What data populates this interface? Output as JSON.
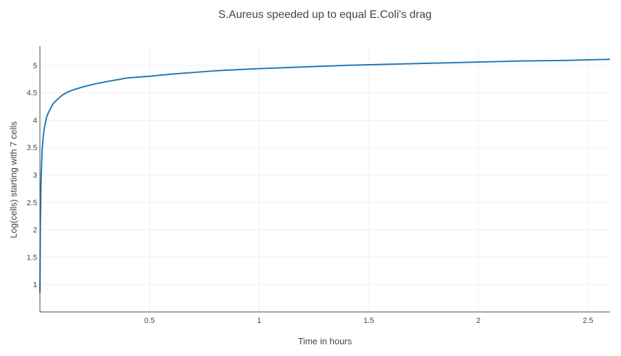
{
  "chart_data": {
    "type": "line",
    "title": "S.Aureus speeded up to equal E.Coli's drag",
    "xlabel": "Time in hours",
    "ylabel": "Log(cells) starting with 7 cells",
    "xlim": [
      0,
      2.6
    ],
    "ylim": [
      0.5,
      5.35
    ],
    "xticks": [
      0.5,
      1,
      1.5,
      2,
      2.5
    ],
    "xtick_labels": [
      "0.5",
      "1",
      "1.5",
      "2",
      "2.5"
    ],
    "yticks": [
      1,
      1.5,
      2,
      2.5,
      3,
      3.5,
      4,
      4.5,
      5
    ],
    "ytick_labels": [
      "1",
      "1.5",
      "2",
      "2.5",
      "3",
      "3.5",
      "4",
      "4.5",
      "5"
    ],
    "grid": true,
    "legend": "none",
    "series": [
      {
        "color": "#1f77b4",
        "x": [
          0,
          0.002,
          0.005,
          0.01,
          0.015,
          0.02,
          0.03,
          0.04,
          0.05,
          0.06,
          0.08,
          0.1,
          0.125,
          0.15,
          0.2,
          0.25,
          0.3,
          0.4,
          0.5,
          0.6,
          0.8,
          1.0,
          1.2,
          1.4,
          1.6,
          1.8,
          2.0,
          2.2,
          2.4,
          2.6
        ],
        "y": [
          0.85,
          2.1,
          2.9,
          3.45,
          3.7,
          3.85,
          4.05,
          4.15,
          4.22,
          4.3,
          4.38,
          4.45,
          4.51,
          4.55,
          4.61,
          4.66,
          4.7,
          4.77,
          4.8,
          4.84,
          4.9,
          4.94,
          4.97,
          5.0,
          5.02,
          5.04,
          5.06,
          5.08,
          5.09,
          5.11
        ]
      }
    ]
  }
}
